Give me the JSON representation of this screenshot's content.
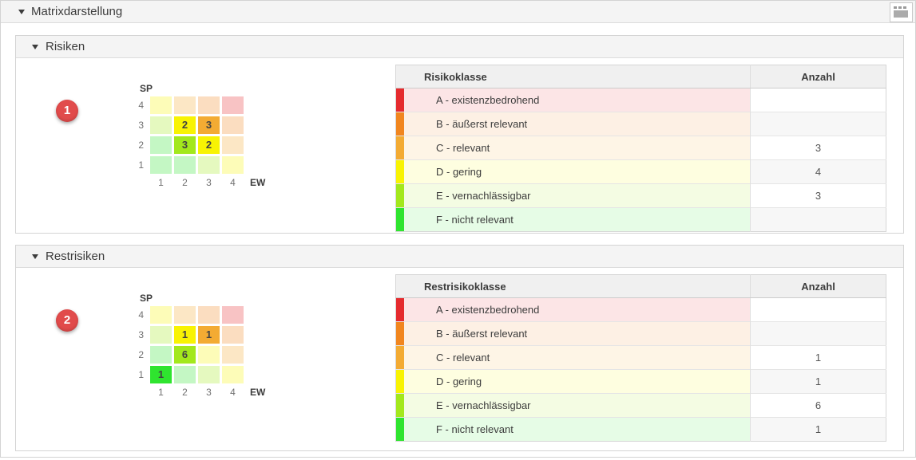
{
  "header": {
    "title": "Matrixdarstellung"
  },
  "class_colors": {
    "A": "#e52b2e",
    "B": "#f1861f",
    "C": "#f3ab33",
    "D": "#f8f303",
    "E": "#a3e81c",
    "F": "#2fe42f"
  },
  "sections": [
    {
      "title": "Risiken",
      "badge": "1",
      "matrix": {
        "y_label": "SP",
        "x_label": "EW",
        "row_labels": [
          "4",
          "3",
          "2",
          "1"
        ],
        "col_labels": [
          "1",
          "2",
          "3",
          "4"
        ],
        "rows": [
          [
            {
              "cls": "D",
              "value": ""
            },
            {
              "cls": "C",
              "value": ""
            },
            {
              "cls": "B",
              "value": ""
            },
            {
              "cls": "A",
              "value": ""
            }
          ],
          [
            {
              "cls": "E",
              "value": ""
            },
            {
              "cls": "D",
              "value": "2"
            },
            {
              "cls": "C",
              "value": "3"
            },
            {
              "cls": "B",
              "value": ""
            }
          ],
          [
            {
              "cls": "F",
              "value": ""
            },
            {
              "cls": "E",
              "value": "3"
            },
            {
              "cls": "D",
              "value": "2"
            },
            {
              "cls": "C",
              "value": ""
            }
          ],
          [
            {
              "cls": "F",
              "value": ""
            },
            {
              "cls": "F",
              "value": ""
            },
            {
              "cls": "E",
              "value": ""
            },
            {
              "cls": "D",
              "value": ""
            }
          ]
        ]
      },
      "table": {
        "headers": {
          "class": "Risikoklasse",
          "count": "Anzahl"
        },
        "rows": [
          {
            "cls": "A",
            "label": "A - existenzbedrohend",
            "count": ""
          },
          {
            "cls": "B",
            "label": "B - äußerst relevant",
            "count": ""
          },
          {
            "cls": "C",
            "label": "C - relevant",
            "count": "3"
          },
          {
            "cls": "D",
            "label": "D - gering",
            "count": "4"
          },
          {
            "cls": "E",
            "label": "E - vernachlässigbar",
            "count": "3"
          },
          {
            "cls": "F",
            "label": "F - nicht relevant",
            "count": ""
          }
        ]
      }
    },
    {
      "title": "Restrisiken",
      "badge": "2",
      "matrix": {
        "y_label": "SP",
        "x_label": "EW",
        "row_labels": [
          "4",
          "3",
          "2",
          "1"
        ],
        "col_labels": [
          "1",
          "2",
          "3",
          "4"
        ],
        "rows": [
          [
            {
              "cls": "D",
              "value": ""
            },
            {
              "cls": "C",
              "value": ""
            },
            {
              "cls": "B",
              "value": ""
            },
            {
              "cls": "A",
              "value": ""
            }
          ],
          [
            {
              "cls": "E",
              "value": ""
            },
            {
              "cls": "D",
              "value": "1"
            },
            {
              "cls": "C",
              "value": "1"
            },
            {
              "cls": "B",
              "value": ""
            }
          ],
          [
            {
              "cls": "F",
              "value": ""
            },
            {
              "cls": "E",
              "value": "6"
            },
            {
              "cls": "D",
              "value": ""
            },
            {
              "cls": "C",
              "value": ""
            }
          ],
          [
            {
              "cls": "F",
              "value": "1"
            },
            {
              "cls": "F",
              "value": ""
            },
            {
              "cls": "E",
              "value": ""
            },
            {
              "cls": "D",
              "value": ""
            }
          ]
        ]
      },
      "table": {
        "headers": {
          "class": "Restrisikoklasse",
          "count": "Anzahl"
        },
        "rows": [
          {
            "cls": "A",
            "label": "A - existenzbedrohend",
            "count": ""
          },
          {
            "cls": "B",
            "label": "B - äußerst relevant",
            "count": ""
          },
          {
            "cls": "C",
            "label": "C - relevant",
            "count": "1"
          },
          {
            "cls": "D",
            "label": "D - gering",
            "count": "1"
          },
          {
            "cls": "E",
            "label": "E - vernachlässigbar",
            "count": "6"
          },
          {
            "cls": "F",
            "label": "F - nicht relevant",
            "count": "1"
          }
        ]
      }
    }
  ]
}
